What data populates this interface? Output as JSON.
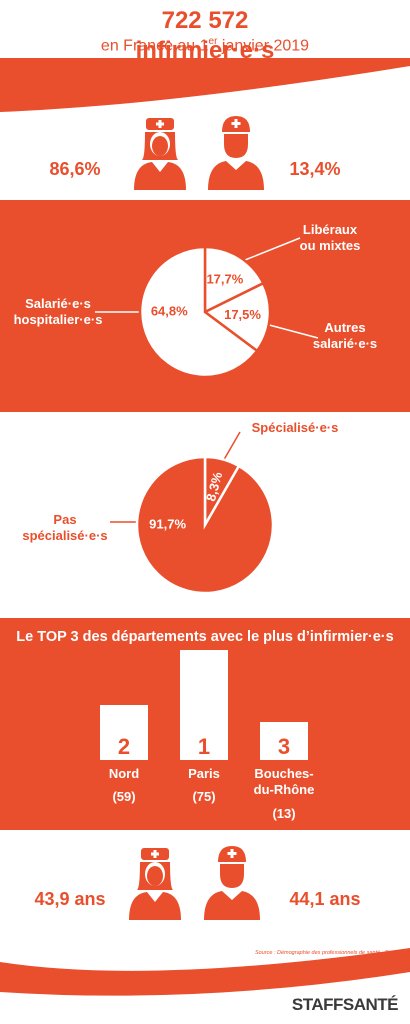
{
  "header": {
    "title": "722 572 infirmier·e·s",
    "subtitle": [
      "en France au 1",
      "er",
      " janvier 2019"
    ]
  },
  "gender": {
    "women": "86,6%",
    "men": "13,4%"
  },
  "chart_data": [
    {
      "type": "pie",
      "categories": [
        "Libéraux\nou mixtes",
        "Autres\nsalarié·e·s",
        "Salarié·e·s\nhospitalier·e·s"
      ],
      "values": [
        17.7,
        17.5,
        64.8
      ],
      "value_labels": [
        "17,7%",
        "17,5%",
        "64,8%"
      ],
      "color": "#ffffff",
      "edge_color": "#e94f2c",
      "label_color": "#e94f2c"
    },
    {
      "type": "pie",
      "categories": [
        "Spécialisé·e·s",
        "Pas\nspécialisé·e·s"
      ],
      "values": [
        8.3,
        91.7
      ],
      "value_labels": [
        "8,3%",
        "91,7%"
      ],
      "color": "#e94f2c",
      "edge_color": "#ffffff",
      "label_color": "#ffffff"
    }
  ],
  "top3": {
    "title": "Le TOP 3 des départements avec le plus d’infirmier·e·s",
    "items": [
      {
        "rank": 2,
        "name": "Nord",
        "code": "(59)"
      },
      {
        "rank": 1,
        "name": "Paris",
        "code": "(75)"
      },
      {
        "rank": 3,
        "name": "Bouches-\ndu-Rhône",
        "code": "(13)"
      }
    ]
  },
  "age": {
    "women": "43,9 ans",
    "men": "44,1 ans"
  },
  "source": "Source : Démographie des professionnels de santé - Drees",
  "logo": "STAFFSANTÉ"
}
